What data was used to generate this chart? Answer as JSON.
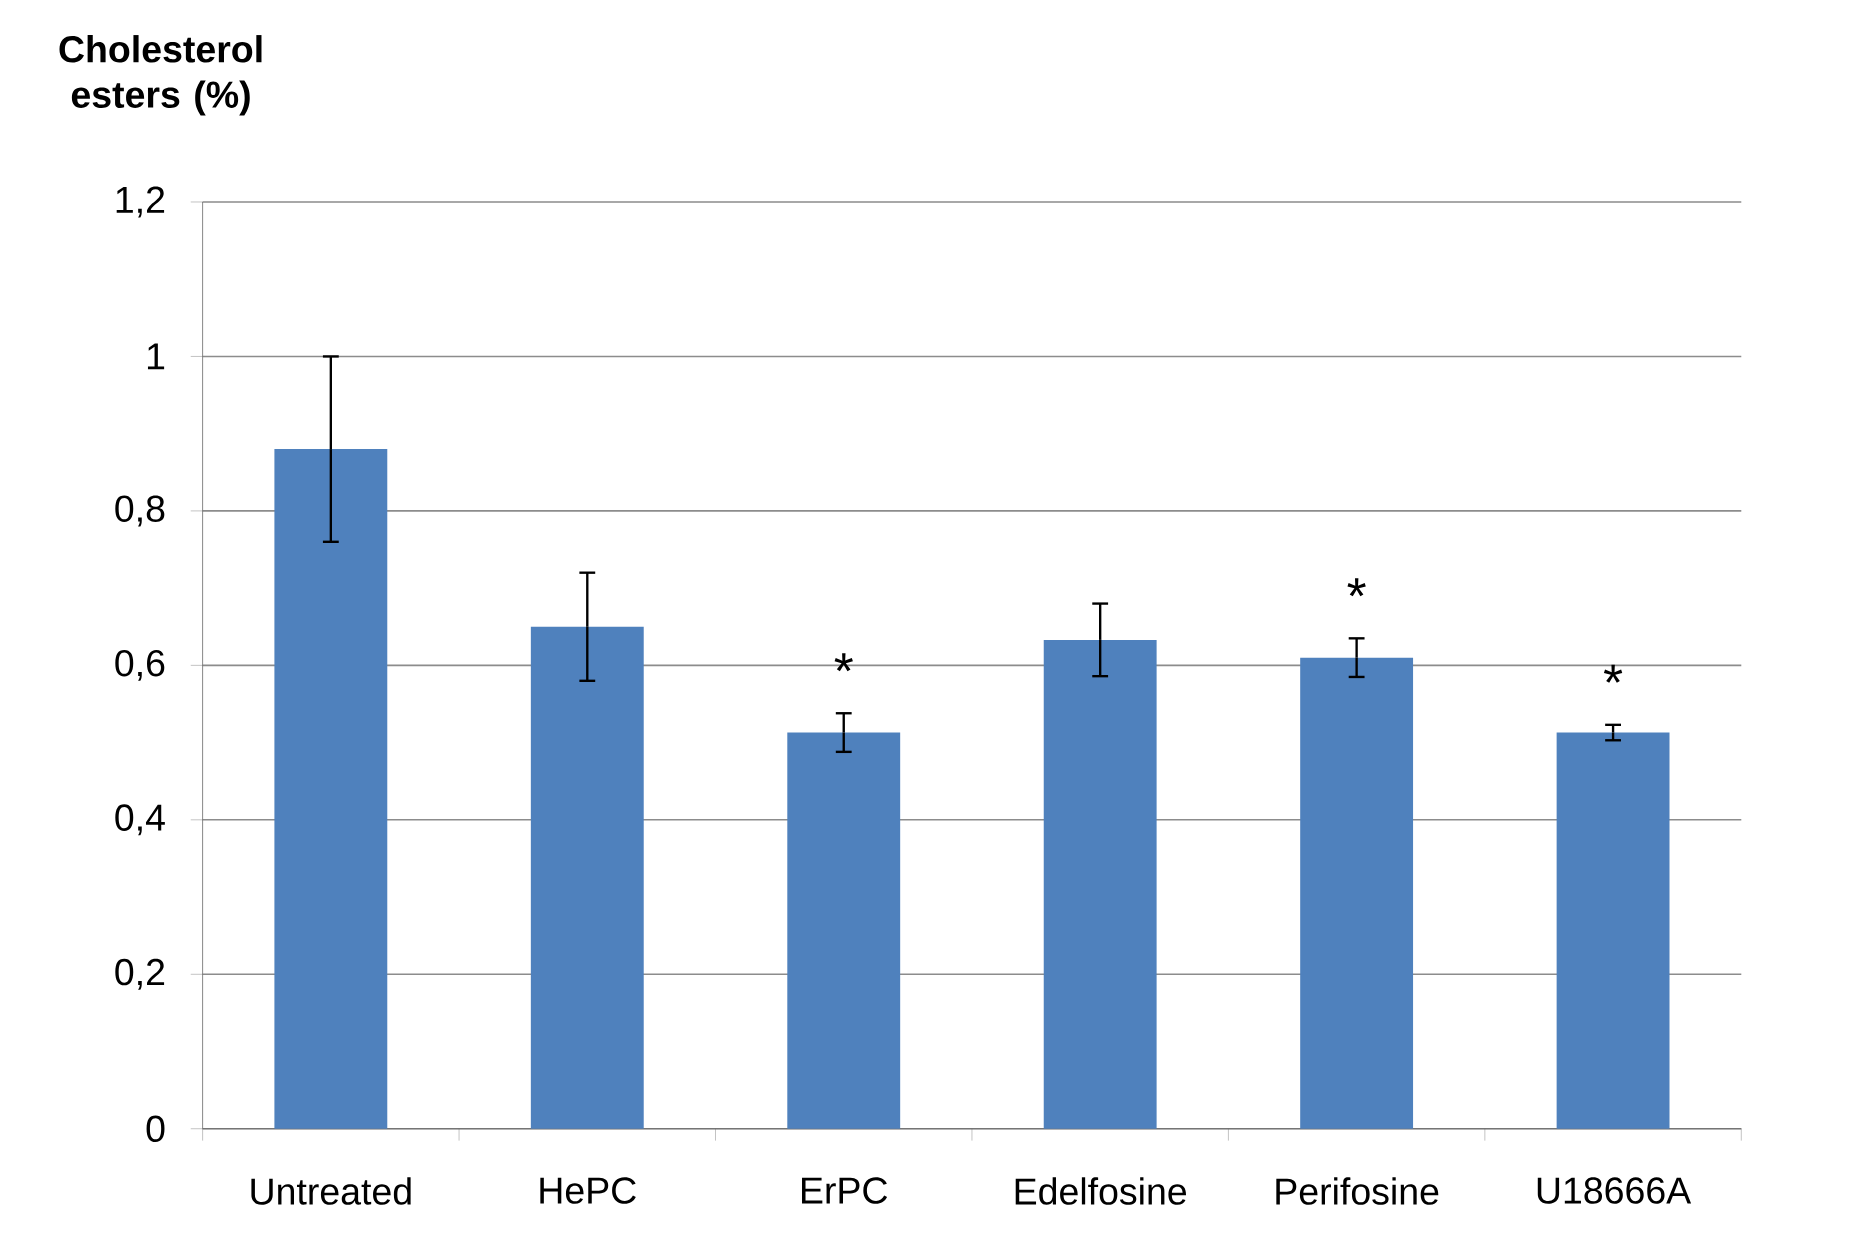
{
  "chart_data": {
    "type": "bar",
    "ylabel": "Cholesterol esters (%)",
    "categories": [
      "Untreated",
      "HePC",
      "ErPC",
      "Edelfosine",
      "Perifosine",
      "U18666A"
    ],
    "values": [
      0.88,
      0.65,
      0.513,
      0.633,
      0.61,
      0.513
    ],
    "errors": [
      0.12,
      0.07,
      0.025,
      0.047,
      0.025,
      0.01
    ],
    "color": "#4f81bd",
    "ylim": [
      0,
      1.2
    ],
    "yticks": [
      0,
      {
        "value": 0.2,
        "label": "0,2"
      },
      {
        "value": 0.4,
        "label": "0,4"
      },
      {
        "value": 0.6,
        "label": "0,6"
      },
      {
        "value": 0.8,
        "label": "0,8"
      },
      1,
      {
        "value": 1.2,
        "label": "1,2"
      }
    ],
    "grid": "y",
    "annotations": [
      {
        "text": "*",
        "x": "ErPC",
        "y": 0.538
      },
      {
        "text": "*",
        "x": "Perifosine",
        "y": 0.635
      },
      {
        "text": "*",
        "x": "U18666A",
        "y": 0.523
      }
    ]
  }
}
